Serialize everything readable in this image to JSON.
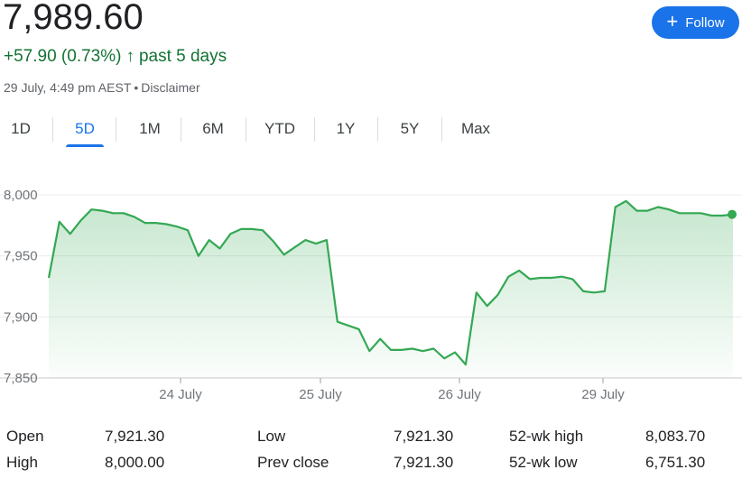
{
  "header": {
    "price": "7,989.60",
    "change": "+57.90 (0.73%)",
    "change_arrow": "↑",
    "change_period": "past 5 days",
    "timestamp": "29 July, 4:49 pm AEST",
    "separator": "•",
    "disclaimer": "Disclaimer",
    "follow_label": "Follow",
    "follow_icon": "plus-icon"
  },
  "tabs": [
    {
      "label": "1D",
      "active": false
    },
    {
      "label": "5D",
      "active": true
    },
    {
      "label": "1M",
      "active": false
    },
    {
      "label": "6M",
      "active": false
    },
    {
      "label": "YTD",
      "active": false
    },
    {
      "label": "1Y",
      "active": false
    },
    {
      "label": "5Y",
      "active": false
    },
    {
      "label": "Max",
      "active": false
    }
  ],
  "colors": {
    "accent": "#1a73e8",
    "positive": "#137333",
    "line": "#34a853"
  },
  "chart_data": {
    "type": "area",
    "x_tick_labels": [
      "24 July",
      "25 July",
      "26 July",
      "29 July"
    ],
    "y_tick_labels": [
      "8,000",
      "7,950",
      "7,900",
      "7,850"
    ],
    "ylim": [
      7850,
      8000
    ],
    "grid": true,
    "series": [
      {
        "values": [
          7932,
          7978,
          7968,
          7979,
          7988,
          7987,
          7985,
          7985,
          7982,
          7977,
          7977,
          7976,
          7974,
          7971,
          7950,
          7963,
          7956,
          7968,
          7972,
          7972,
          7971,
          7962,
          7951,
          7957,
          7963,
          7960,
          7963,
          7896,
          7893,
          7890,
          7872,
          7882,
          7873,
          7873,
          7874,
          7872,
          7874,
          7866,
          7871,
          7861,
          7920,
          7909,
          7918,
          7933,
          7938,
          7931,
          7932,
          7932,
          7933,
          7931,
          7921,
          7920,
          7921,
          7990,
          7995,
          7987,
          7987,
          7990,
          7988,
          7985,
          7985,
          7985,
          7983,
          7983,
          7984
        ]
      }
    ]
  },
  "stats": {
    "open_label": "Open",
    "open_value": "7,921.30",
    "high_label": "High",
    "high_value": "8,000.00",
    "low_label": "Low",
    "low_value": "7,921.30",
    "prev_close_label": "Prev close",
    "prev_close_value": "7,921.30",
    "wk52_high_label": "52-wk high",
    "wk52_high_value": "8,083.70",
    "wk52_low_label": "52-wk low",
    "wk52_low_value": "6,751.30"
  }
}
